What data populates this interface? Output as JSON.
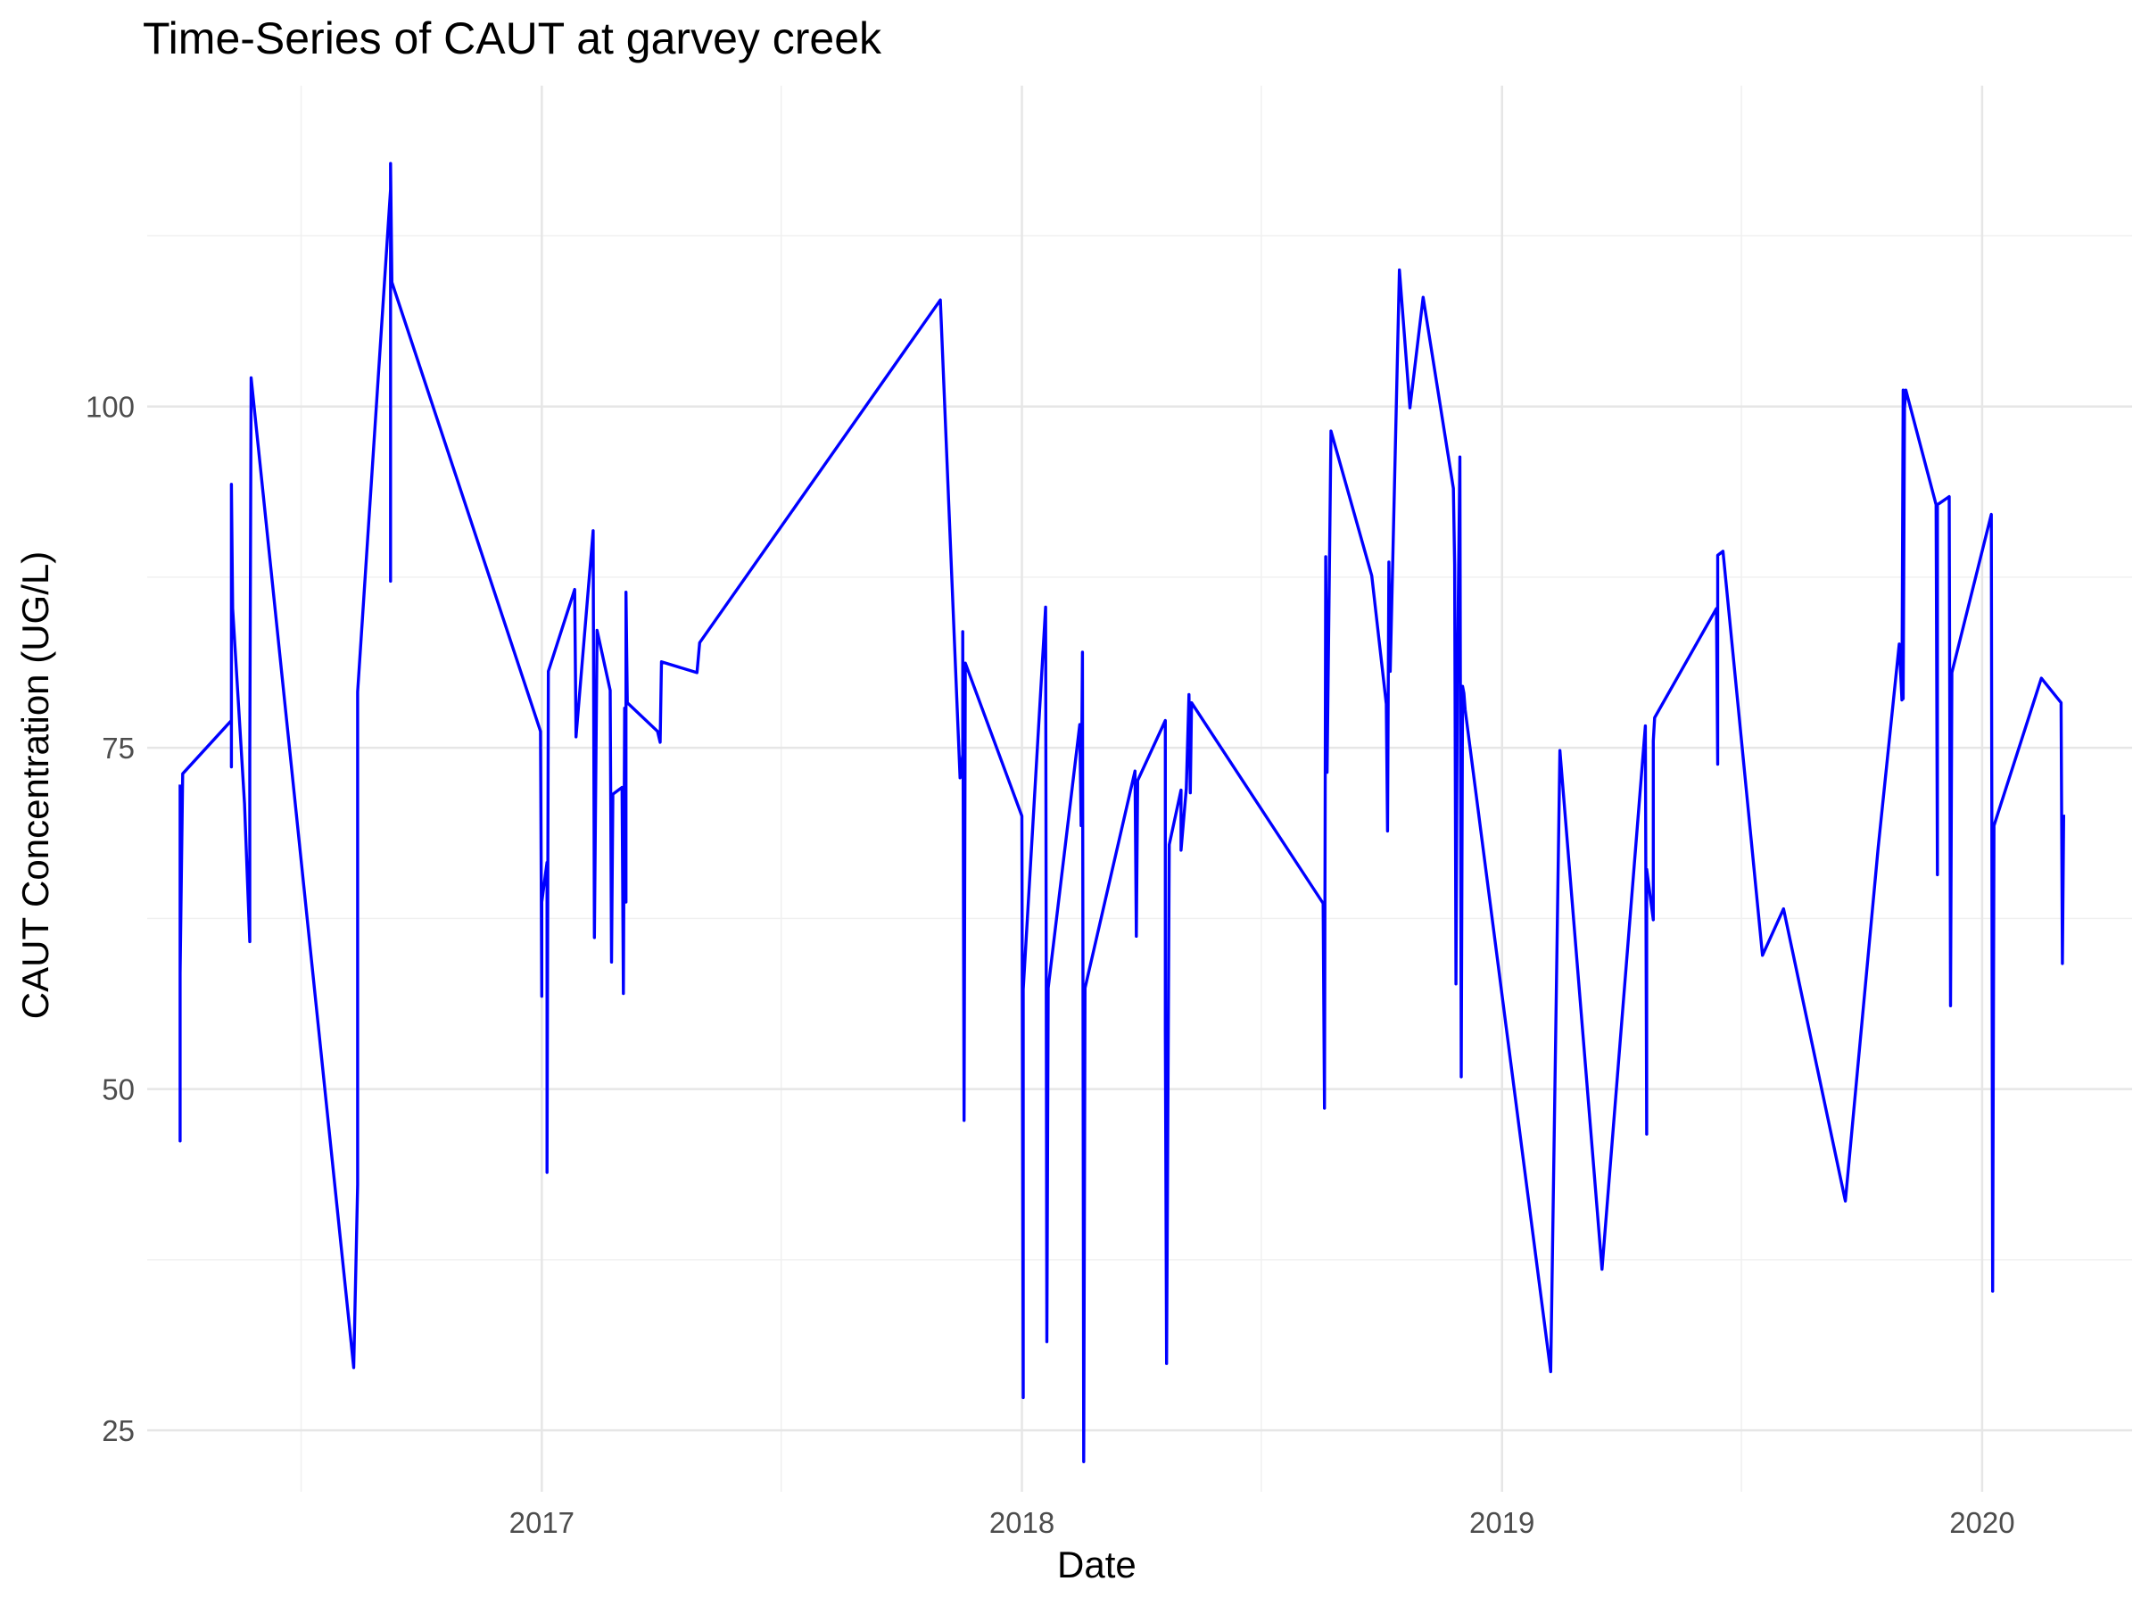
{
  "chart_data": {
    "type": "line",
    "title": "Time-Series of CAUT at garvey creek",
    "xlabel": "Date",
    "ylabel": "CAUT Concentration (UG/L)",
    "x_ticks": [
      {
        "label": "2017",
        "value": "2017-01-01"
      },
      {
        "label": "2018",
        "value": "2018-01-01"
      },
      {
        "label": "2019",
        "value": "2019-01-01"
      },
      {
        "label": "2020",
        "value": "2020-01-01"
      }
    ],
    "y_ticks": [
      25,
      50,
      75,
      100
    ],
    "xlim": [
      "2016-03-07",
      "2020-04-24"
    ],
    "ylim": [
      20.5,
      123.5
    ],
    "grid": true,
    "line_color": "#0000ff",
    "series": [
      {
        "points": [
          [
            "2016-04-01",
            72.3
          ],
          [
            "2016-04-01",
            46.2
          ],
          [
            "2016-04-01",
            58.5
          ],
          [
            "2016-04-03",
            73.1
          ],
          [
            "2016-05-10",
            77.0
          ],
          [
            "2016-05-10",
            73.6
          ],
          [
            "2016-05-10",
            94.3
          ],
          [
            "2016-05-11",
            85.2
          ],
          [
            "2016-05-20",
            70.9
          ],
          [
            "2016-05-24",
            60.8
          ],
          [
            "2016-05-24",
            74.4
          ],
          [
            "2016-05-25",
            102.1
          ],
          [
            "2016-08-11",
            29.6
          ],
          [
            "2016-08-14",
            43.0
          ],
          [
            "2016-08-14",
            60.0
          ],
          [
            "2016-08-14",
            79.1
          ],
          [
            "2016-09-08",
            115.9
          ],
          [
            "2016-09-08",
            87.2
          ],
          [
            "2016-09-08",
            96.7
          ],
          [
            "2016-09-08",
            117.8
          ],
          [
            "2016-09-09",
            109.1
          ],
          [
            "2016-12-31",
            76.2
          ],
          [
            "2017-01-01",
            56.8
          ],
          [
            "2017-01-01",
            63.7
          ],
          [
            "2017-01-05",
            66.6
          ],
          [
            "2017-01-05",
            43.9
          ],
          [
            "2017-01-06",
            80.6
          ],
          [
            "2017-01-26",
            86.6
          ],
          [
            "2017-01-27",
            75.8
          ],
          [
            "2017-02-09",
            90.9
          ],
          [
            "2017-02-10",
            61.1
          ],
          [
            "2017-02-12",
            83.6
          ],
          [
            "2017-02-22",
            79.2
          ],
          [
            "2017-02-23",
            59.3
          ],
          [
            "2017-02-24",
            71.6
          ],
          [
            "2017-03-03",
            72.1
          ],
          [
            "2017-03-04",
            57.0
          ],
          [
            "2017-03-05",
            77.9
          ],
          [
            "2017-03-06",
            63.7
          ],
          [
            "2017-03-06",
            86.4
          ],
          [
            "2017-03-07",
            78.3
          ],
          [
            "2017-03-30",
            76.2
          ],
          [
            "2017-04-01",
            75.4
          ],
          [
            "2017-04-02",
            81.3
          ],
          [
            "2017-04-29",
            80.5
          ],
          [
            "2017-05-01",
            82.7
          ],
          [
            "2017-10-31",
            107.8
          ],
          [
            "2017-11-15",
            72.8
          ],
          [
            "2017-11-17",
            74.5
          ],
          [
            "2017-11-17",
            83.5
          ],
          [
            "2017-11-18",
            47.7
          ],
          [
            "2017-11-19",
            81.2
          ],
          [
            "2018-01-01",
            70.0
          ],
          [
            "2018-01-02",
            27.4
          ],
          [
            "2018-01-02",
            57.3
          ],
          [
            "2018-01-19",
            85.3
          ],
          [
            "2018-01-20",
            31.5
          ],
          [
            "2018-01-21",
            57.4
          ],
          [
            "2018-02-14",
            76.7
          ],
          [
            "2018-02-15",
            69.3
          ],
          [
            "2018-02-16",
            82.0
          ],
          [
            "2018-02-17",
            22.7
          ],
          [
            "2018-02-18",
            57.4
          ],
          [
            "2018-03-28",
            73.3
          ],
          [
            "2018-03-29",
            61.2
          ],
          [
            "2018-03-30",
            72.6
          ],
          [
            "2018-04-20",
            77.0
          ],
          [
            "2018-04-20",
            54.3
          ],
          [
            "2018-04-21",
            29.9
          ],
          [
            "2018-04-23",
            67.9
          ],
          [
            "2018-05-02",
            71.9
          ],
          [
            "2018-05-02",
            67.5
          ],
          [
            "2018-05-06",
            72.0
          ],
          [
            "2018-05-08",
            78.9
          ],
          [
            "2018-05-09",
            71.7
          ],
          [
            "2018-05-10",
            78.3
          ],
          [
            "2018-08-18",
            63.6
          ],
          [
            "2018-08-19",
            48.6
          ],
          [
            "2018-08-20",
            89.0
          ],
          [
            "2018-08-21",
            73.2
          ],
          [
            "2018-08-24",
            98.2
          ],
          [
            "2018-09-24",
            87.6
          ],
          [
            "2018-10-05",
            78.2
          ],
          [
            "2018-10-06",
            68.9
          ],
          [
            "2018-10-07",
            88.6
          ],
          [
            "2018-10-08",
            80.6
          ],
          [
            "2018-10-15",
            110.0
          ],
          [
            "2018-10-23",
            99.9
          ],
          [
            "2018-11-02",
            108.0
          ],
          [
            "2018-11-25",
            94.0
          ],
          [
            "2018-11-26",
            88.4
          ],
          [
            "2018-11-27",
            57.7
          ],
          [
            "2018-11-28",
            79.6
          ],
          [
            "2018-11-30",
            96.3
          ],
          [
            "2018-12-01",
            50.9
          ],
          [
            "2018-12-02",
            79.5
          ],
          [
            "2018-12-03",
            79.0
          ],
          [
            "2018-12-04",
            77.8
          ],
          [
            "2019-02-07",
            29.3
          ],
          [
            "2019-02-14",
            74.8
          ],
          [
            "2019-03-18",
            36.8
          ],
          [
            "2019-04-20",
            76.6
          ],
          [
            "2019-04-21",
            46.7
          ],
          [
            "2019-04-21",
            66.1
          ],
          [
            "2019-04-26",
            62.4
          ],
          [
            "2019-04-26",
            75.5
          ],
          [
            "2019-04-27",
            77.2
          ],
          [
            "2019-06-13",
            85.2
          ],
          [
            "2019-06-14",
            73.8
          ],
          [
            "2019-06-14",
            89.1
          ],
          [
            "2019-06-18",
            89.4
          ],
          [
            "2019-07-18",
            59.8
          ],
          [
            "2019-08-03",
            63.2
          ],
          [
            "2019-09-19",
            41.8
          ],
          [
            "2019-10-14",
            67.7
          ],
          [
            "2019-10-30",
            82.6
          ],
          [
            "2019-11-01",
            78.5
          ],
          [
            "2019-11-02",
            101.2
          ],
          [
            "2019-11-02",
            78.6
          ],
          [
            "2019-11-03",
            99.9
          ],
          [
            "2019-11-04",
            101.2
          ],
          [
            "2019-11-27",
            92.8
          ],
          [
            "2019-11-28",
            65.7
          ],
          [
            "2019-11-28",
            92.8
          ],
          [
            "2019-12-07",
            93.4
          ],
          [
            "2019-12-08",
            56.1
          ],
          [
            "2019-12-09",
            80.5
          ],
          [
            "2020-01-08",
            92.1
          ],
          [
            "2020-01-09",
            35.2
          ],
          [
            "2020-01-10",
            69.3
          ],
          [
            "2020-02-15",
            80.1
          ],
          [
            "2020-03-01",
            78.3
          ],
          [
            "2020-03-02",
            59.2
          ],
          [
            "2020-03-03",
            70.1
          ]
        ]
      }
    ]
  }
}
